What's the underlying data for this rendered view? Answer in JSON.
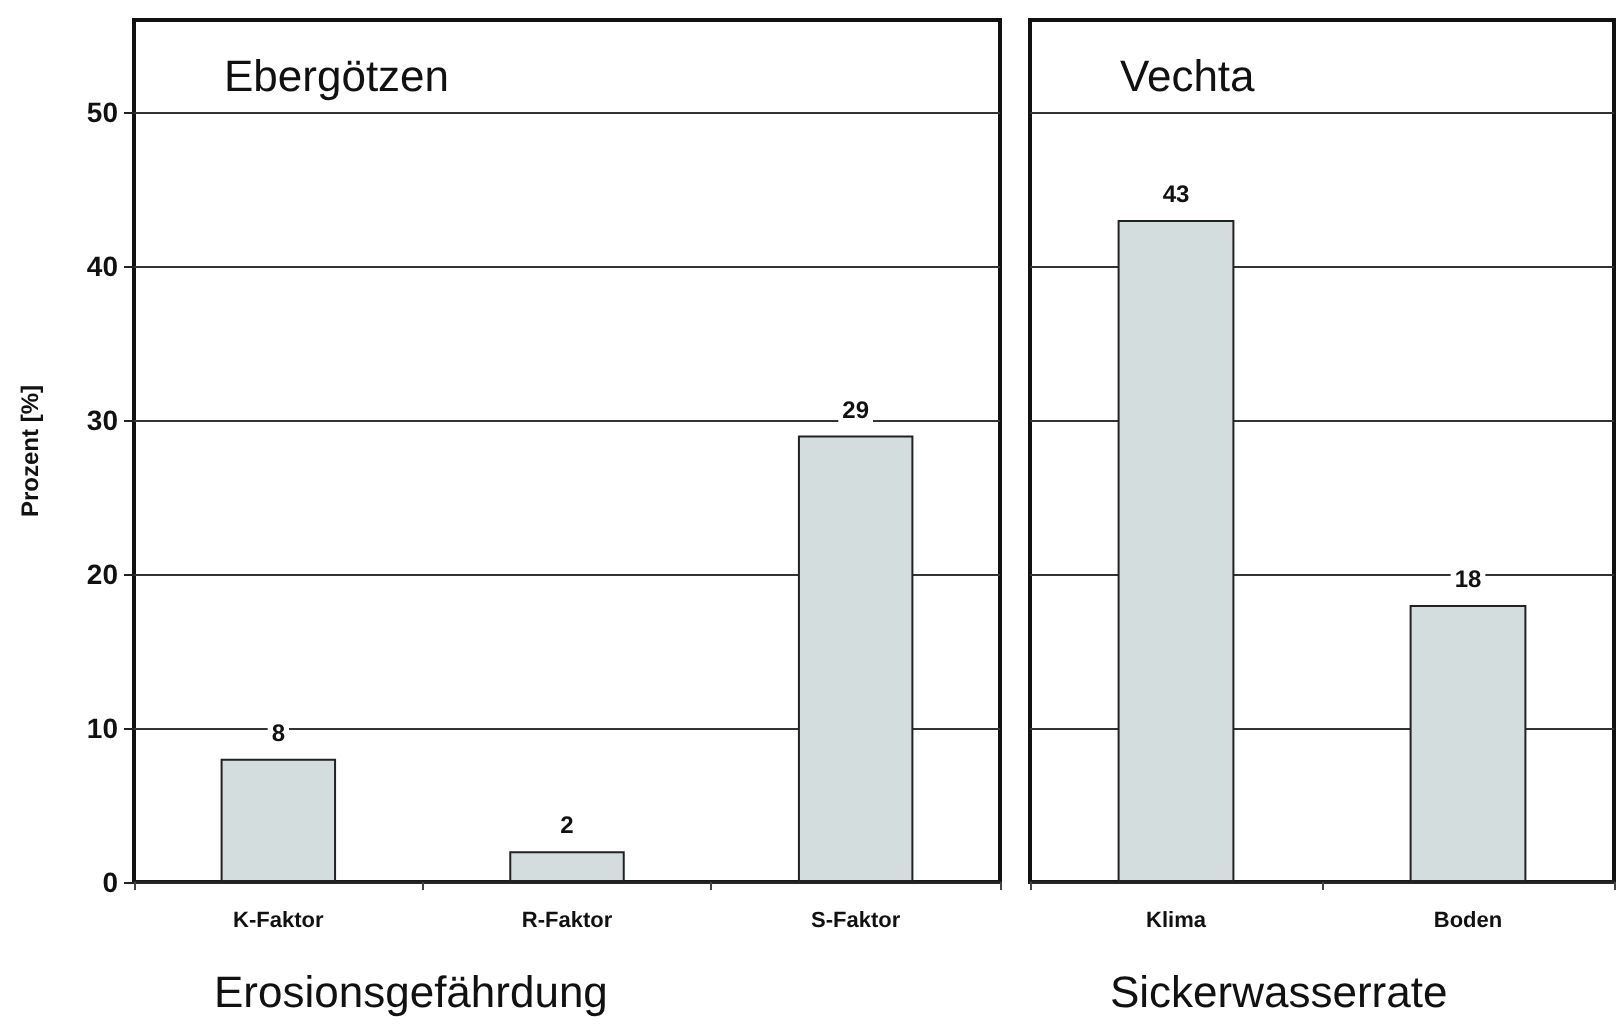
{
  "chart_data": [
    {
      "type": "bar",
      "title": "Ebergötzen",
      "xlabel": "Erosionsgefährdung",
      "ylabel": "Prozent [%]",
      "categories": [
        "K-Faktor",
        "R-Faktor",
        "S-Faktor"
      ],
      "values": [
        8,
        2,
        29
      ],
      "color": "#d3dddd",
      "ylim": [
        0,
        56
      ],
      "yticks": [
        0,
        10,
        20,
        30,
        40,
        50
      ],
      "grid": "y",
      "data_labels": true
    },
    {
      "type": "bar",
      "title": "Vechta",
      "xlabel": "Sickerwasserrate",
      "categories": [
        "Klima",
        "Boden"
      ],
      "values": [
        43,
        18
      ],
      "color": "#d3dddd",
      "ylim": [
        0,
        56
      ],
      "yticks": [
        0,
        10,
        20,
        30,
        40,
        50
      ],
      "grid": "y",
      "data_labels": true,
      "tick_labels": "x"
    }
  ]
}
